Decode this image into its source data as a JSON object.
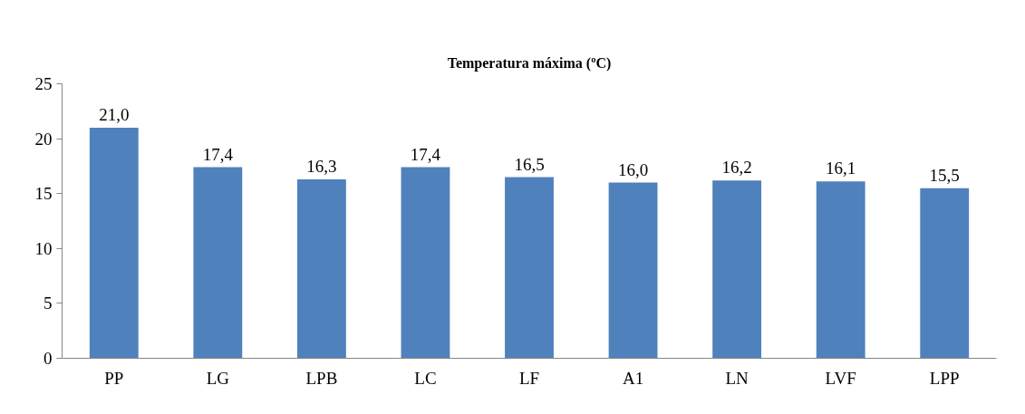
{
  "chart_data": {
    "type": "bar",
    "title": "Temperatura máxima (ºC)",
    "categories": [
      "PP",
      "LG",
      "LPB",
      "LC",
      "LF",
      "A1",
      "LN",
      "LVF",
      "LPP"
    ],
    "values": [
      21.0,
      17.4,
      16.3,
      17.4,
      16.5,
      16.0,
      16.2,
      16.1,
      15.5
    ],
    "value_labels": [
      "21,0",
      "17,4",
      "16,3",
      "17,4",
      "16,5",
      "16,0",
      "16,2",
      "16,1",
      "15,5"
    ],
    "color": "#4f81bd",
    "ylim": [
      0,
      25
    ],
    "yticks": [
      0,
      5,
      10,
      15,
      20,
      25
    ],
    "grid": false
  }
}
